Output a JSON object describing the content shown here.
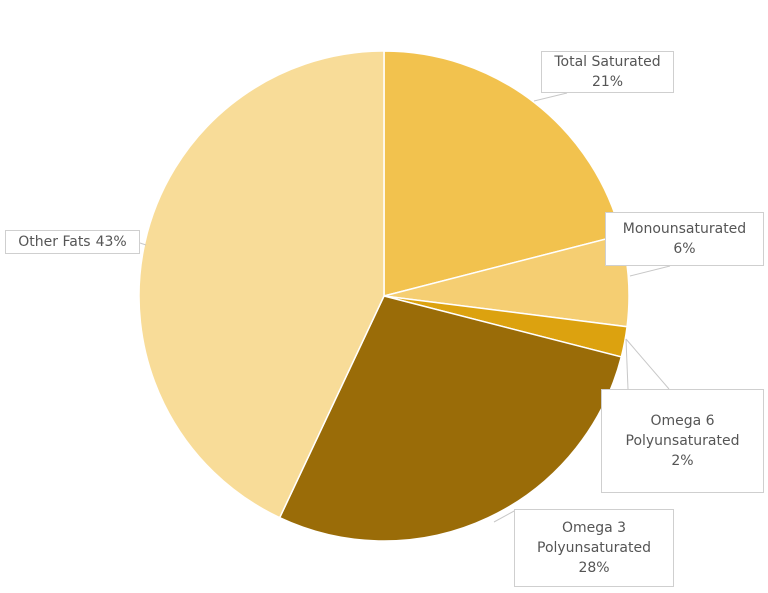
{
  "chart_data": {
    "type": "pie",
    "start_angle": "top",
    "direction": "clockwise",
    "slices": [
      {
        "label": "Total Saturated",
        "value": 21,
        "value_label": "21%",
        "color": "#F2C24E"
      },
      {
        "label": "Monounsaturated",
        "value": 6,
        "value_label": "6%",
        "color": "#F5CE72"
      },
      {
        "label": "Omega 6 Polyunsaturated",
        "label_lines": [
          "Omega 6",
          "Polyunsaturated"
        ],
        "value": 2,
        "value_label": "2%",
        "color": "#DCA20F"
      },
      {
        "label": "Omega 3 Polyunsaturated",
        "label_lines": [
          "Omega 3",
          "Polyunsaturated"
        ],
        "value": 28,
        "value_label": "28%",
        "color": "#9A6C08"
      },
      {
        "label": "Other Fats",
        "value": 43,
        "value_label": "43%",
        "color": "#F8DC98"
      }
    ]
  }
}
